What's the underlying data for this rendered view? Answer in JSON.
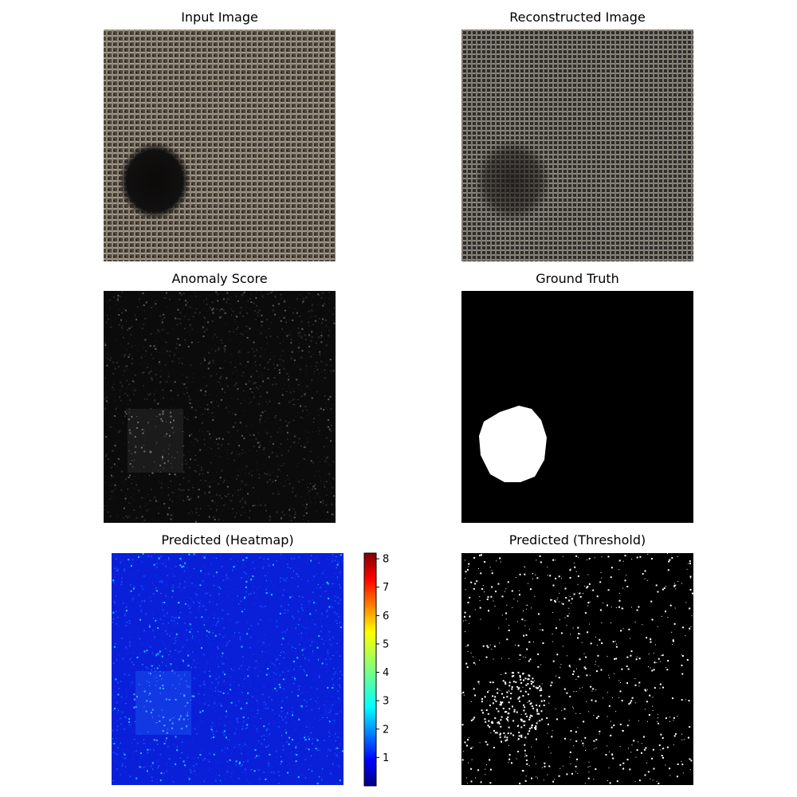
{
  "figure": {
    "panels": [
      {
        "id": "input",
        "title": "Input Image"
      },
      {
        "id": "reconstructed",
        "title": "Reconstructed Image"
      },
      {
        "id": "anomaly",
        "title": "Anomaly Score"
      },
      {
        "id": "ground_truth",
        "title": "Ground Truth"
      },
      {
        "id": "heatmap",
        "title": "Predicted (Heatmap)"
      },
      {
        "id": "threshold",
        "title": "Predicted (Threshold)"
      }
    ]
  },
  "chart_data": [
    {
      "type": "image",
      "title": "Input Image",
      "description_colors": {
        "fabric": "#5a5048",
        "thread": "#9a9283",
        "defect": "#0e0c0b"
      }
    },
    {
      "type": "image",
      "title": "Reconstructed Image",
      "description_colors": {
        "fabric": "#3a3937",
        "thread": "#8f8a80"
      }
    },
    {
      "type": "image",
      "title": "Anomaly Score",
      "description_colors": {
        "background": "#0a0a0a",
        "noise": "#6a6a6a"
      }
    },
    {
      "type": "image",
      "title": "Ground Truth",
      "description_colors": {
        "background": "#000000",
        "mask": "#ffffff"
      }
    },
    {
      "type": "heatmap",
      "title": "Predicted (Heatmap)",
      "colormap": "jet",
      "colorbar": {
        "ticks": [
          1,
          2,
          3,
          4,
          5,
          6,
          7,
          8
        ],
        "range": [
          0,
          8.2
        ]
      }
    },
    {
      "type": "image",
      "title": "Predicted (Threshold)",
      "description_colors": {
        "background": "#000000",
        "foreground": "#ffffff"
      }
    }
  ]
}
